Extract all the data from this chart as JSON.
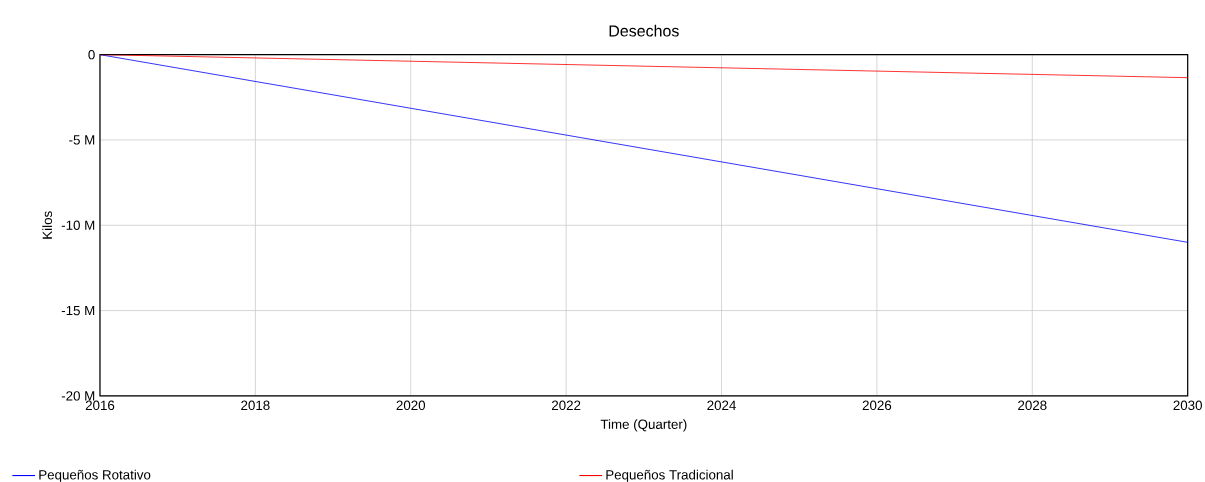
{
  "chart_data": {
    "type": "line",
    "title": "Desechos",
    "xlabel": "Time (Quarter)",
    "ylabel": "Kilos",
    "x": [
      2016,
      2030
    ],
    "series": [
      {
        "name": "Pequeños Rotativo",
        "color": "#0000ff",
        "values": [
          0,
          -11000000
        ]
      },
      {
        "name": "Pequeños Tradicional",
        "color": "#ff0000",
        "values": [
          0,
          -1350000
        ]
      }
    ],
    "xlim": [
      2016,
      2030
    ],
    "xticks": [
      2016,
      2018,
      2020,
      2022,
      2024,
      2026,
      2028,
      2030
    ],
    "ylim": [
      -20000000,
      0
    ],
    "yticks": [
      {
        "value": -20000000,
        "label": "-20 M"
      },
      {
        "value": -15000000,
        "label": "-15 M"
      },
      {
        "value": -10000000,
        "label": "-10 M"
      },
      {
        "value": -5000000,
        "label": "-5 M"
      },
      {
        "value": 0,
        "label": "0"
      }
    ],
    "grid": true,
    "legend": "bottom",
    "marker": "none",
    "line_style": "solid"
  }
}
